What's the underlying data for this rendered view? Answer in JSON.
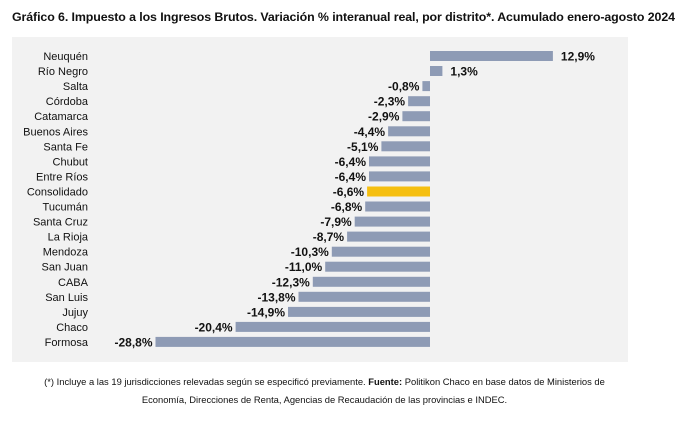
{
  "title": "Gráfico 6. Impuesto a los Ingresos Brutos. Variación % interanual real, por distrito*. Acumulado enero-agosto 2024",
  "footnote": {
    "text1": "(*) Incluye a las 19 jurisdicciones relevadas según se especificó previamente. ",
    "source_label": "Fuente:",
    "text2": " Politikon Chaco en base datos de Ministerios de",
    "line2": "Economía, Direcciones de Renta, Agencias de Recaudación de las provincias e INDEC."
  },
  "colors": {
    "bar": "#8e9bb5",
    "highlight": "#f5bf10",
    "panel": "#f2f2f2"
  },
  "chart_data": {
    "type": "bar",
    "orientation": "horizontal",
    "categories": [
      "Neuquén",
      "Río Negro",
      "Salta",
      "Córdoba",
      "Catamarca",
      "Buenos Aires",
      "Santa Fe",
      "Chubut",
      "Entre Ríos",
      "Consolidado",
      "Tucumán",
      "Santa Cruz",
      "La Rioja",
      "Mendoza",
      "San Juan",
      "CABA",
      "San Luis",
      "Jujuy",
      "Chaco",
      "Formosa"
    ],
    "values": [
      12.9,
      1.3,
      -0.8,
      -2.3,
      -2.9,
      -4.4,
      -5.1,
      -6.4,
      -6.4,
      -6.6,
      -6.8,
      -7.9,
      -8.7,
      -10.3,
      -11.0,
      -12.3,
      -13.8,
      -14.9,
      -20.4,
      -28.8
    ],
    "value_labels": [
      "12,9%",
      "1,3%",
      "-0,8%",
      "-2,3%",
      "-2,9%",
      "-4,4%",
      "-5,1%",
      "-6,4%",
      "-6,4%",
      "-6,6%",
      "-6,8%",
      "-7,9%",
      "-8,7%",
      "-10,3%",
      "-11,0%",
      "-12,3%",
      "-13,8%",
      "-14,9%",
      "-20,4%",
      "-28,8%"
    ],
    "highlight": "Consolidado",
    "xlabel": "",
    "ylabel": "",
    "grid": false,
    "legend": "none"
  }
}
